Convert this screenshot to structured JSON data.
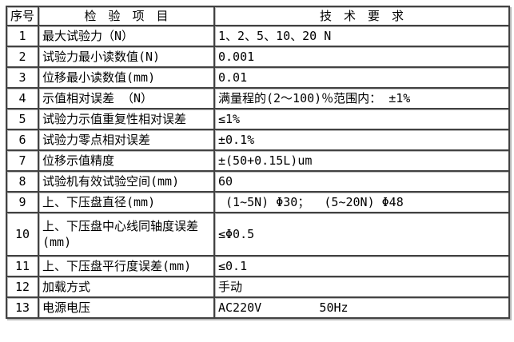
{
  "page": {
    "background_color": "#ffffff",
    "grid_border_dark": "#424242",
    "grid_border_light": "#bdbdbd",
    "text_color": "#000000"
  },
  "table": {
    "columns": [
      {
        "key": "no",
        "label": "序号"
      },
      {
        "key": "item",
        "label": "检　验　项　目"
      },
      {
        "key": "req",
        "label": "技　术　要　求"
      }
    ],
    "rows": [
      {
        "no": "1",
        "item": "最大试验力（N）",
        "req": "1、2、5、10、20 N"
      },
      {
        "no": "2",
        "item": "试验力最小读数值(N)",
        "req": "0.001"
      },
      {
        "no": "3",
        "item": "位移最小读数值(mm)",
        "req": "0.01"
      },
      {
        "no": "4",
        "item": "示值相对误差 （N）",
        "req": "满量程的(2～100)％范围内： ±1%"
      },
      {
        "no": "5",
        "item": "试验力示值重复性相对误差",
        "req": "≤1%"
      },
      {
        "no": "6",
        "item": "试验力零点相对误差",
        "req": "±0.1%"
      },
      {
        "no": "7",
        "item": "位移示值精度",
        "req": "±(50+0.15L)um"
      },
      {
        "no": "8",
        "item": "试验机有效试验空间(mm)",
        "req": "60"
      },
      {
        "no": "9",
        "item": "上、下压盘直径(mm)",
        "req": " (1~5N) Φ30；  (5~20N) Φ48"
      },
      {
        "no": "10",
        "item": "上、下压盘中心线同轴度误差(mm)",
        "req": "≤Φ0.5",
        "tall": true
      },
      {
        "no": "11",
        "item": "上、下压盘平行度误差(mm)",
        "req": "≤0.1"
      },
      {
        "no": "12",
        "item": "加载方式",
        "req": "手动"
      },
      {
        "no": "13",
        "item": "电源电压",
        "req": "AC220V        50Hz"
      }
    ]
  }
}
